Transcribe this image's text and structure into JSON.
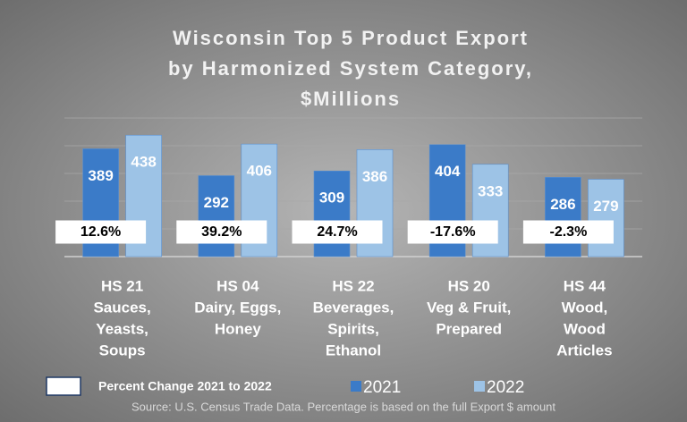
{
  "chart_data": {
    "type": "bar",
    "title": [
      "Wisconsin Top 5 Product Export",
      "by Harmonized System Category,",
      "$Millions"
    ],
    "categories": [
      [
        "HS 21",
        "Sauces,",
        "Yeasts,",
        "Soups"
      ],
      [
        "HS 04",
        "Dairy, Eggs,",
        "Honey"
      ],
      [
        "HS 22",
        "Beverages,",
        "Spirits,",
        "Ethanol"
      ],
      [
        "HS 20",
        "Veg & Fruit,",
        "Prepared"
      ],
      [
        "HS 44",
        "Wood,",
        "Wood",
        "Articles"
      ]
    ],
    "series": [
      {
        "name": "2021",
        "color": "#3b7bc8",
        "values": [
          389,
          292,
          309,
          404,
          286
        ]
      },
      {
        "name": "2022",
        "color": "#9dc3e6",
        "values": [
          438,
          406,
          386,
          333,
          279
        ]
      }
    ],
    "percent_change": {
      "name": "Percent Change 2021 to 2022",
      "values": [
        12.6,
        39.2,
        24.7,
        -17.6,
        -2.3
      ],
      "value_labels": [
        "12.6%",
        "39.2%",
        "24.7%",
        "-17.6%",
        "-2.3%"
      ]
    },
    "ylim": [
      0,
      500
    ],
    "yticks": [
      0,
      100,
      200,
      300,
      400,
      500
    ],
    "grid": true,
    "source": "Source: U.S. Census Trade Data. Percentage is based on the full Export $ amount"
  }
}
